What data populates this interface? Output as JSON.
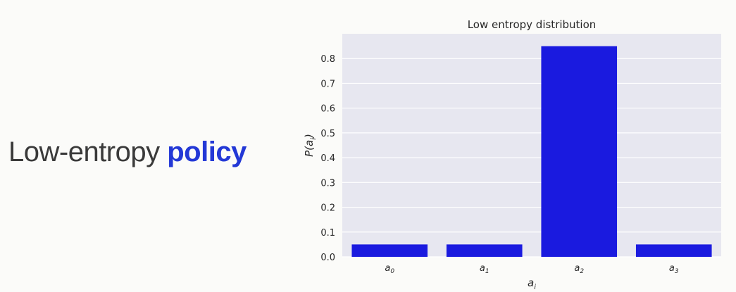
{
  "left_heading": {
    "plain": "Low-entropy ",
    "accent": "policy",
    "accent_color": "#2338d6"
  },
  "chart_data": {
    "type": "bar",
    "title": "Low entropy distribution",
    "xlabel": "a_i",
    "ylabel": "P(a_i)",
    "categories": [
      "a_0",
      "a_1",
      "a_2",
      "a_3"
    ],
    "values": [
      0.05,
      0.05,
      0.85,
      0.05
    ],
    "ylim": [
      0,
      0.9
    ],
    "yticks": [
      "0.0",
      "0.1",
      "0.2",
      "0.3",
      "0.4",
      "0.5",
      "0.6",
      "0.7",
      "0.8"
    ],
    "grid": true,
    "bar_color": "#1a1adf",
    "plot_background": "#e7e7f0"
  }
}
